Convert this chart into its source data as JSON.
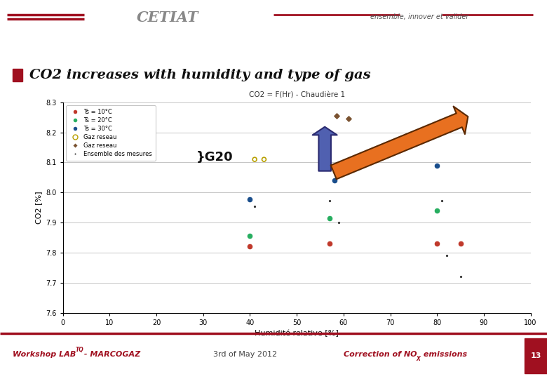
{
  "title_chart": "CO2 = F(Hr) - Chaudière 1",
  "main_title": "CO2 increases with humidity and type of gas",
  "xlabel": "Humidité relative [%]",
  "ylabel": "CO2 [%]",
  "xlim": [
    0,
    100
  ],
  "ylim": [
    7.6,
    8.3
  ],
  "yticks": [
    7.6,
    7.7,
    7.8,
    7.9,
    8.0,
    8.1,
    8.2,
    8.3
  ],
  "xticks": [
    0,
    10,
    20,
    30,
    40,
    50,
    60,
    70,
    80,
    90,
    100
  ],
  "background_color": "#ffffff",
  "plot_bg": "#ffffff",
  "header_bar_color": "#a01020",
  "series": {
    "Ts10_red": {
      "label": "Ts = 10°C",
      "color": "#c0392b",
      "marker": "o",
      "x": [
        40,
        57,
        80,
        85
      ],
      "y": [
        7.82,
        7.83,
        7.83,
        7.83
      ]
    },
    "Ts20_green": {
      "label": "Ts = 20°C",
      "color": "#27ae60",
      "marker": "o",
      "x": [
        40,
        57,
        80
      ],
      "y": [
        7.855,
        7.915,
        7.94
      ]
    },
    "Ts30_blue": {
      "label": "Ts = 30°C",
      "color": "#1a4e8c",
      "marker": "o",
      "x": [
        40,
        58,
        60,
        80
      ],
      "y": [
        7.978,
        8.04,
        8.085,
        8.09
      ]
    },
    "gaz_yellow": {
      "label": "Gaz reseau",
      "color": "#b8a000",
      "marker": "o",
      "x": [
        41,
        43
      ],
      "y": [
        8.11,
        8.11
      ]
    },
    "gaz_brown": {
      "label": "Gaz reseau",
      "color": "#7a5230",
      "marker": "D",
      "x": [
        58.5,
        61
      ],
      "y": [
        8.255,
        8.245
      ]
    },
    "ensemble": {
      "label": "Ensemble des mesures",
      "color": "#333333",
      "marker": ".",
      "x": [
        41,
        57,
        59,
        81,
        82,
        85,
        85
      ],
      "y": [
        7.953,
        7.972,
        7.9,
        7.972,
        7.79,
        7.833,
        7.72
      ]
    }
  },
  "blue_arrow": {
    "x_start": 56,
    "y_start": 8.065,
    "x_end": 56,
    "y_end": 8.225,
    "color": "#5060b0",
    "edgecolor": "#2a2a70"
  },
  "orange_arrow": {
    "x_start": 57.5,
    "y_start": 8.065,
    "x_end": 87,
    "y_end": 8.255,
    "color": "#e87020",
    "edgecolor": "#5a2800"
  },
  "footer_left": "Workshop LAB",
  "footer_left_super": "TQ",
  "footer_left2": " - MARCOGAZ",
  "footer_center": "3rd of May 2012",
  "footer_right": "Correction of NO",
  "footer_right_sub": "X",
  "footer_right2": " emissions",
  "page_number": "13",
  "slogan": "ensemble, innover et valider"
}
